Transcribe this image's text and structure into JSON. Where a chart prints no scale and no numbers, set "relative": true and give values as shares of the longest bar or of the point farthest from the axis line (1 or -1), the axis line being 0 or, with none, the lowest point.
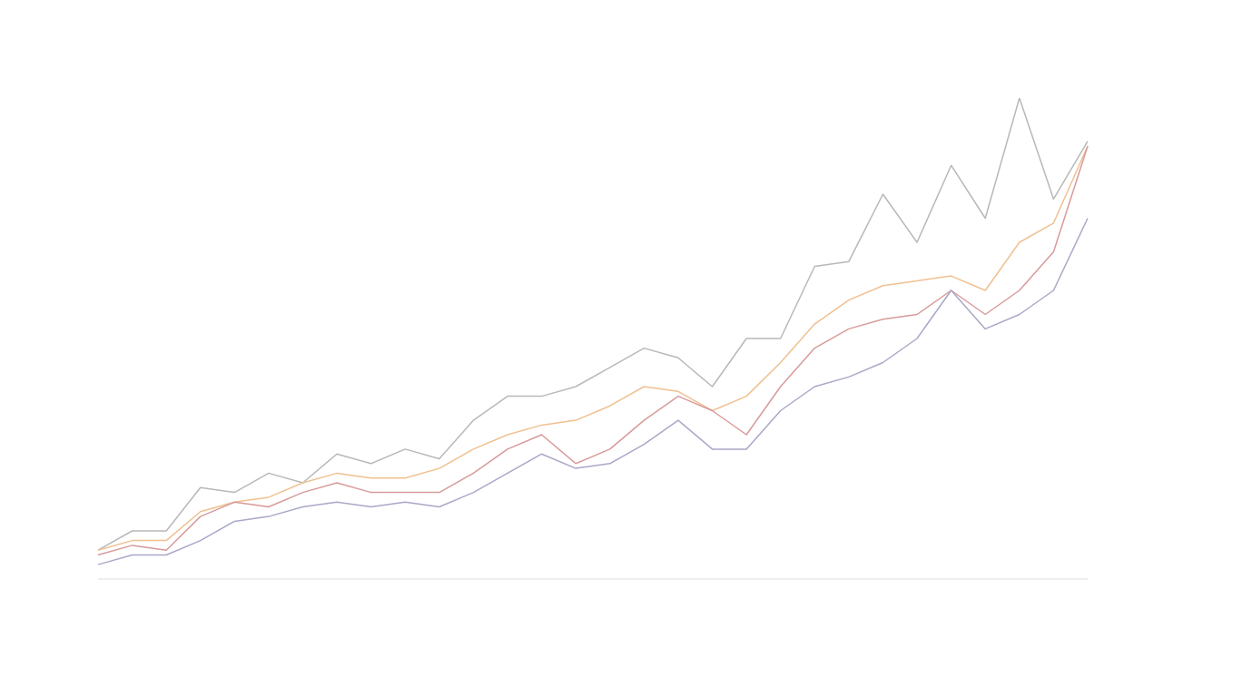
{
  "chart_data": {
    "type": "line",
    "relative": true,
    "categories": [
      null,
      null,
      null,
      null,
      null,
      null,
      null,
      null,
      null,
      null,
      null,
      null,
      null,
      null,
      null,
      null,
      null,
      null,
      null,
      null,
      null,
      null,
      null,
      null,
      null,
      null,
      null,
      null,
      null,
      null
    ],
    "series": [
      {
        "color": "#b8b8b8",
        "values": [
          0.06,
          0.1,
          0.1,
          0.19,
          0.18,
          0.22,
          0.2,
          0.26,
          0.24,
          0.27,
          0.25,
          0.33,
          0.38,
          0.38,
          0.4,
          0.44,
          0.48,
          0.46,
          0.4,
          0.5,
          0.5,
          0.65,
          0.66,
          0.8,
          0.7,
          0.86,
          0.75,
          1,
          0.79,
          0.91
        ]
      },
      {
        "color": "#f0c090",
        "values": [
          0.06,
          0.08,
          0.08,
          0.14,
          0.16,
          0.17,
          0.2,
          0.22,
          0.21,
          0.21,
          0.23,
          0.27,
          0.3,
          0.32,
          0.33,
          0.36,
          0.4,
          0.39,
          0.35,
          0.38,
          0.45,
          0.53,
          0.58,
          0.61,
          0.62,
          0.63,
          0.6,
          0.7,
          0.74,
          0.9
        ]
      },
      {
        "color": "#d89a9a",
        "values": [
          0.05,
          0.07,
          0.06,
          0.13,
          0.16,
          0.15,
          0.18,
          0.2,
          0.18,
          0.18,
          0.18,
          0.22,
          0.27,
          0.3,
          0.24,
          0.27,
          0.33,
          0.38,
          0.35,
          0.3,
          0.4,
          0.48,
          0.52,
          0.54,
          0.55,
          0.6,
          0.55,
          0.6,
          0.68,
          0.9
        ]
      },
      {
        "color": "#a8a8c8",
        "values": [
          0.03,
          0.05,
          0.05,
          0.08,
          0.12,
          0.13,
          0.15,
          0.16,
          0.15,
          0.16,
          0.15,
          0.18,
          0.22,
          0.26,
          0.23,
          0.24,
          0.28,
          0.33,
          0.27,
          0.27,
          0.35,
          0.4,
          0.42,
          0.45,
          0.5,
          0.6,
          0.52,
          0.55,
          0.6,
          0.75
        ]
      }
    ]
  }
}
